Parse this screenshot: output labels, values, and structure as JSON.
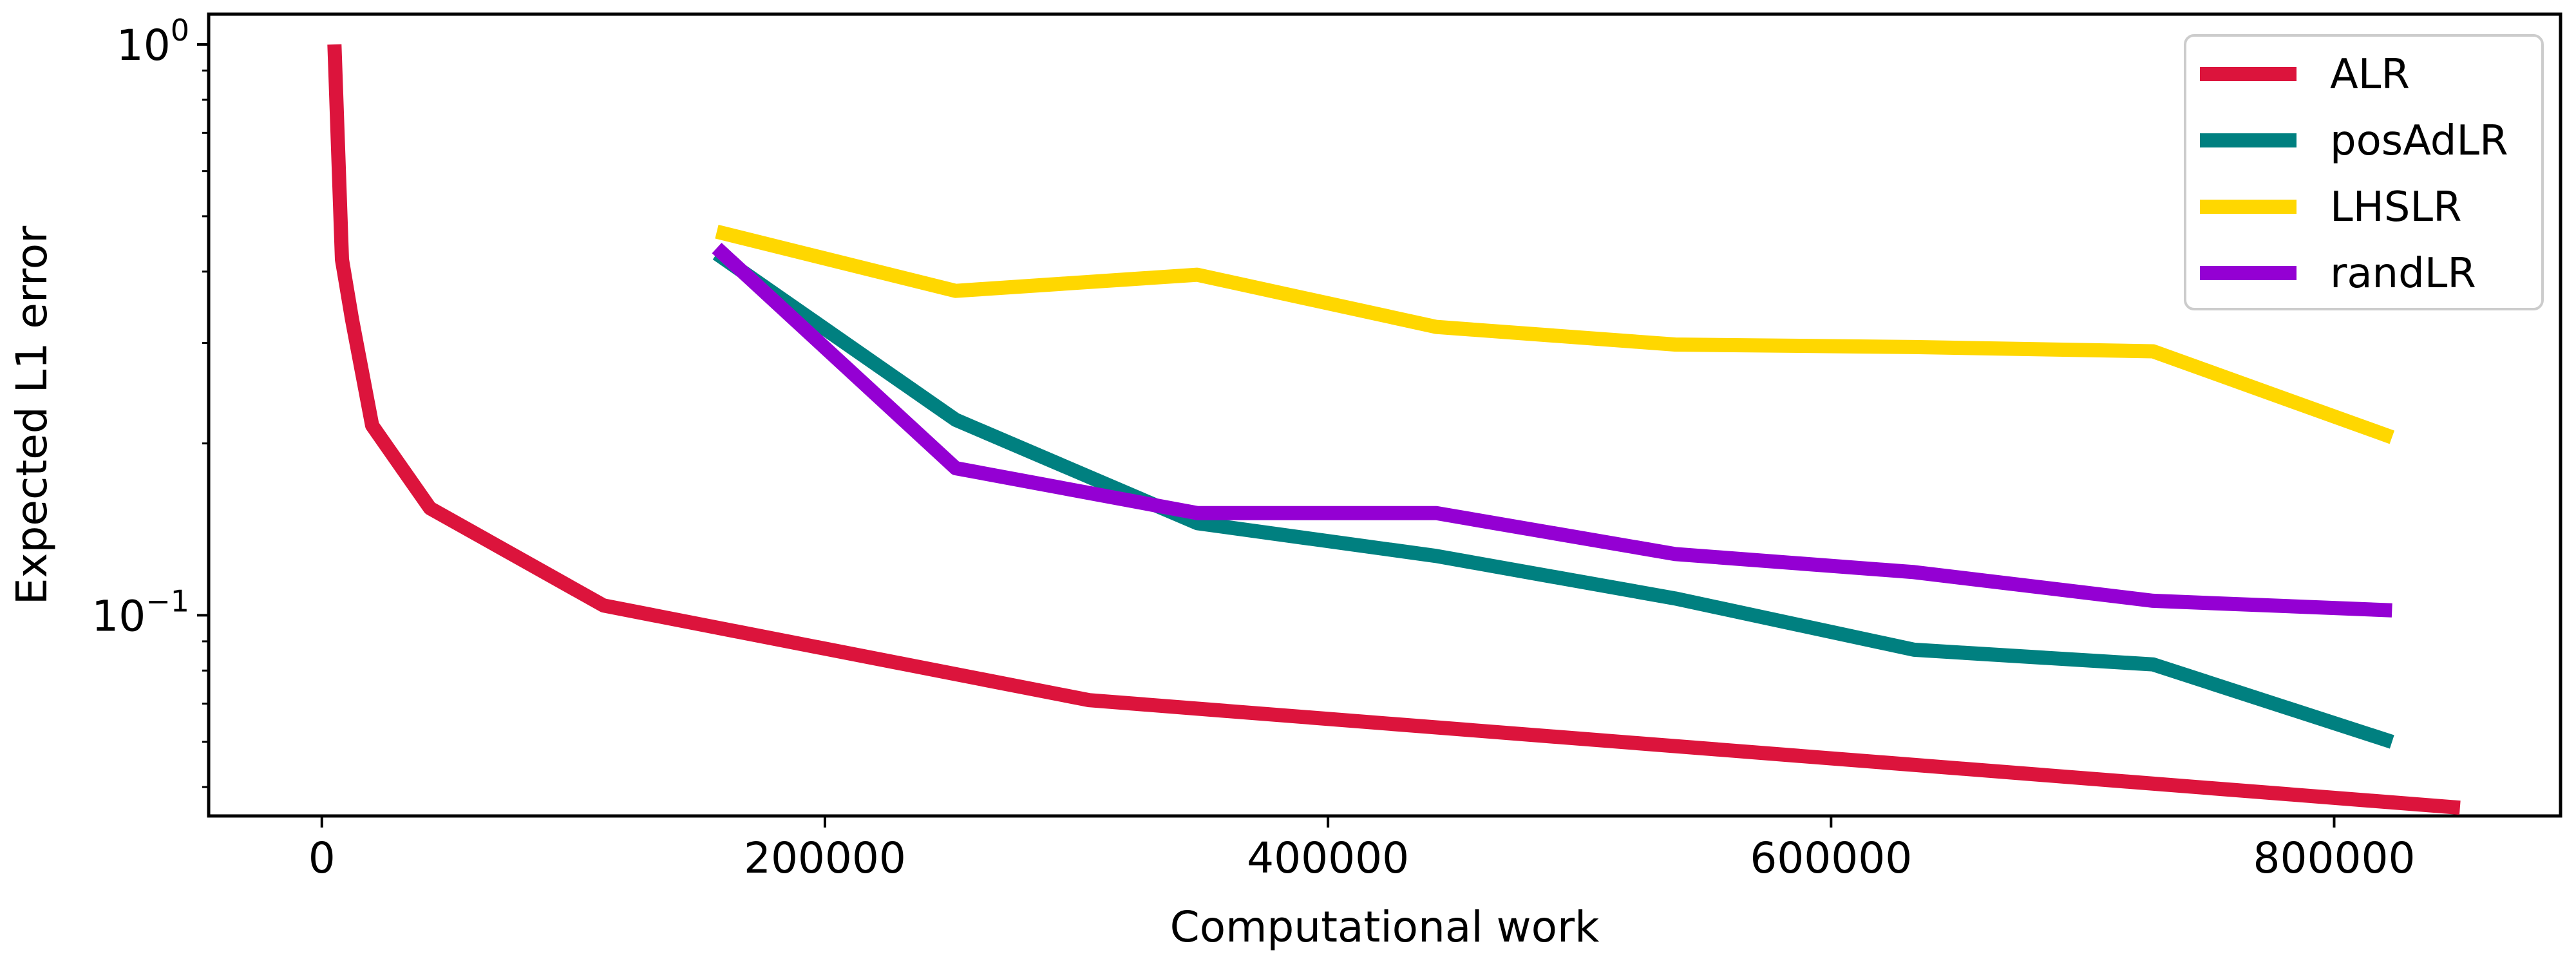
{
  "chart_data": {
    "type": "line",
    "title": "",
    "xlabel": "Computational work",
    "ylabel": "Expected L1 error",
    "xscale": "linear",
    "yscale": "log",
    "xlim": [
      -45000,
      890000
    ],
    "ylim": [
      0.0445,
      1.13
    ],
    "grid": false,
    "legend_position": "top-right",
    "x_ticks": [
      {
        "value": 0,
        "label": "0"
      },
      {
        "value": 200000,
        "label": "200000"
      },
      {
        "value": 400000,
        "label": "400000"
      },
      {
        "value": 600000,
        "label": "600000"
      },
      {
        "value": 800000,
        "label": "800000"
      }
    ],
    "y_ticks": [
      {
        "value": 1.0,
        "base": "10",
        "exp": "0"
      },
      {
        "value": 0.1,
        "base": "10",
        "exp": "−1"
      }
    ],
    "series": [
      {
        "name": "ALR",
        "color": "#dc143c",
        "points": [
          [
            5000,
            1.0
          ],
          [
            8000,
            0.42
          ],
          [
            12000,
            0.33
          ],
          [
            20000,
            0.215
          ],
          [
            43000,
            0.154
          ],
          [
            112000,
            0.104
          ],
          [
            305000,
            0.071
          ],
          [
            850000,
            0.046
          ]
        ]
      },
      {
        "name": "posAdLR",
        "color": "#008080",
        "points": [
          [
            157000,
            0.43
          ],
          [
            252000,
            0.22
          ],
          [
            348000,
            0.145
          ],
          [
            443000,
            0.127
          ],
          [
            538000,
            0.107
          ],
          [
            633000,
            0.087
          ],
          [
            728000,
            0.082
          ],
          [
            823000,
            0.06
          ]
        ]
      },
      {
        "name": "LHSLR",
        "color": "#ffd700",
        "points": [
          [
            157000,
            0.47
          ],
          [
            252000,
            0.37
          ],
          [
            348000,
            0.395
          ],
          [
            443000,
            0.32
          ],
          [
            538000,
            0.298
          ],
          [
            633000,
            0.295
          ],
          [
            728000,
            0.29
          ],
          [
            823000,
            0.205
          ]
        ]
      },
      {
        "name": "randLR",
        "color": "#9400d3",
        "points": [
          [
            157000,
            0.44
          ],
          [
            252000,
            0.181
          ],
          [
            348000,
            0.151
          ],
          [
            443000,
            0.151
          ],
          [
            538000,
            0.128
          ],
          [
            633000,
            0.119
          ],
          [
            728000,
            0.106
          ],
          [
            823000,
            0.102
          ]
        ]
      }
    ]
  }
}
